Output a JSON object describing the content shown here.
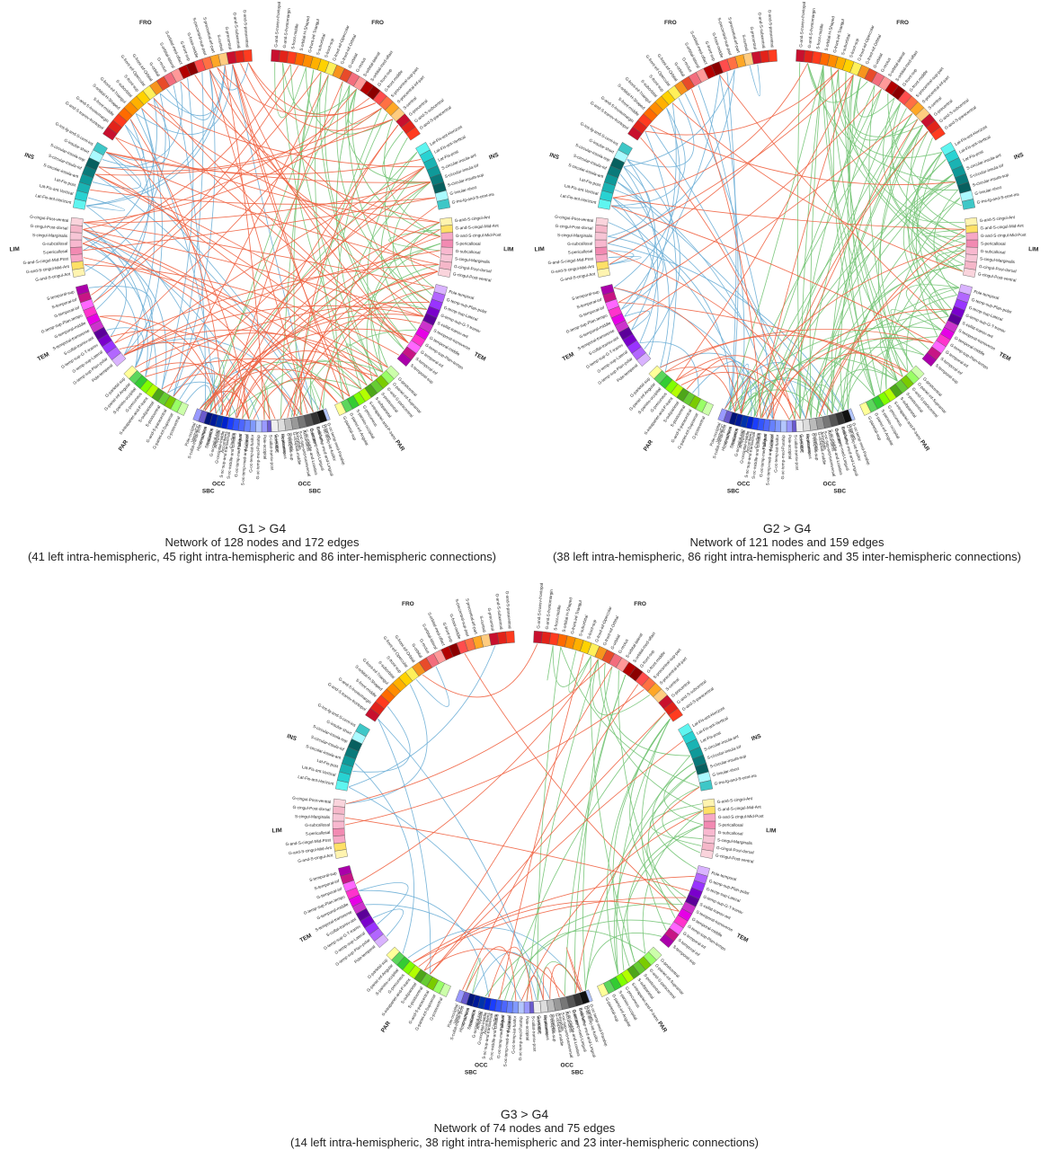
{
  "panels": [
    {
      "id": "g1",
      "title": "G1 > G4",
      "line1": "Network of 128 nodes and 172 edges",
      "line2": "(41 left intra-hemispheric, 45 right intra-hemispheric and 86 inter-hemispheric connections)",
      "lobes": {
        "FRO_L": "FRO",
        "FRO_R": "FRO",
        "INS_L": "INS",
        "INS_R": "INS",
        "LIM_L": "LIM",
        "LIM_R": "LIM",
        "TEM_L": "TEM",
        "TEM_R": "TEM",
        "PAR_L": "PAR",
        "PAR_R": "PAR",
        "OCC_L": "OCC",
        "OCC_R": "OCC",
        "SBC_L": "SBC",
        "SBC_R": "SBC"
      }
    },
    {
      "id": "g2",
      "title": "G2 > G4",
      "line1": "Network of 121 nodes and 159 edges",
      "line2": "(38 left intra-hemispheric, 86 right intra-hemispheric and 35 inter-hemispheric connections)",
      "lobes": {
        "FRO_L": "FRO",
        "FRO_R": "FRO",
        "INS_L": "INS",
        "INS_R": "INS",
        "LIM_L": "LIM",
        "LIM_R": "LIM",
        "TEM_L": "TEM",
        "TEM_R": "TEM",
        "PAR_L": "PAR",
        "PAR_R": "PAR",
        "OCC_L": "OCC",
        "OCC_R": "OCC",
        "SBC_L": "SBC",
        "SBC_R": "SBC"
      }
    },
    {
      "id": "g3",
      "title": "G3 > G4",
      "line1": "Network of 74 nodes and 75 edges",
      "line2": "(14 left intra-hemispheric, 38 right intra-hemispheric and 23 inter-hemispheric connections)",
      "lobes": {
        "FRO_L": "FRO",
        "FRO_R": "FRO",
        "INS_L": "INS",
        "INS_R": "INS",
        "LIM_L": "LIM",
        "LIM_R": "LIM",
        "TEM_L": "TEM",
        "TEM_R": "TEM",
        "PAR_L": "PAR",
        "PAR_R": "PAR",
        "OCC_L": "OCC",
        "OCC_R": "OCC",
        "SBC_L": "SBC",
        "SBC_R": "SBC"
      }
    }
  ],
  "region_labels": {
    "FRO": [
      "G-and-S-transv-frontopol",
      "G-and-S-frontomargin",
      "S-front-middle",
      "S-orbital-H-Shaped",
      "G-front-inf-Triangul",
      "S-suborbital",
      "S-front-sup",
      "G-front-inf-Opercular",
      "G-front-inf-Orbital",
      "G-orbital",
      "G-rectus",
      "S-orbital-lateral",
      "S-orbital-med-olfact",
      "G-front-sup",
      "G-front-middle",
      "S-precentral-sup-part",
      "S-precentral-inf-part",
      "S-central",
      "G-precentral",
      "G-and-S-subcentral",
      "G-and-S-paracentral"
    ],
    "INS": [
      "Lat-Fis-ant-Horizont",
      "Lat-Fis-ant-Vertical",
      "Lat-Fis-post",
      "S-circular-insula-ant",
      "S-circular-insula-inf",
      "S-circular-insula-sup",
      "G-insular-short",
      "G-Ins-lg-and-S-cent-ins"
    ],
    "LIM": [
      "G-and-S-cingul-Ant",
      "G-and-S-cingul-Mid-Ant",
      "G-and-S-cingul-Mid-Post",
      "S-pericallosal",
      "G-subcallosal",
      "S-cingul-Marginalis",
      "G-cingul-Post-dorsal",
      "G-cingul-Post-ventral"
    ],
    "TEM": [
      "Pole-temporal",
      "G-temp-sup-Plan-polar",
      "G-temp-sup-Lateral",
      "G-temp-sup-G-T-transv",
      "S-collat-transv-ant",
      "S-temporal-transverse",
      "G-temporal-middle",
      "G-temp-sup-Plan-tempo",
      "G-temporal-inf",
      "S-temporal-inf",
      "S-temporal-sup"
    ],
    "PAR": [
      "G-postcentral",
      "G-pariet-inf-Supramar",
      "G-and-S-paracentral",
      "S-postcentral",
      "S-subparietal",
      "S-intrapariet-and-P-trans",
      "G-precuneus",
      "S-parieto-occipital",
      "G-pariet-inf-Angular",
      "G-parietal-sup"
    ],
    "OCC": [
      "G-oc-temp-med-Parahip",
      "G-oc-temp-lat-fusifor",
      "S-oc-temp-med-and-Lingual",
      "G-oc-temp-med-Lingual",
      "S-oc-middle-and-Lunatus",
      "S-oc-sup-and-transversal",
      "G-occipital-middle",
      "G-occipital-sup",
      "S-calcarine",
      "G-cuneus",
      "S-collat-transv-post",
      "Pole-occipital"
    ],
    "SBC": [
      "Putamen",
      "Pallidum",
      "Caudate",
      "Accumbens",
      "Amygdala",
      "Thalamus",
      "Hippocampus",
      "VentralDC"
    ]
  },
  "lobe_colors": {
    "FRO": [
      "#c8102e",
      "#e2231a",
      "#ff3b1f",
      "#ff6a00",
      "#ff8c00",
      "#ffb000",
      "#ffd200",
      "#fff05a",
      "#f7941d",
      "#e84b2a",
      "#f26d7d",
      "#ff9999",
      "#b30000",
      "#8b0000",
      "#ff4d4d",
      "#ff7043",
      "#ffa726",
      "#ffcc80"
    ],
    "INS": [
      "#5ff5f0",
      "#28d2d2",
      "#1ab3b3",
      "#0f9999",
      "#0a7a7a",
      "#07605f",
      "#aafaff",
      "#3ec7c7"
    ],
    "LIM": [
      "#fff4b0",
      "#ffe066",
      "#f7a8c6",
      "#f28ab2",
      "#f8b8cf",
      "#f7c6d6",
      "#f5b7c9",
      "#fad4dc"
    ],
    "TEM": [
      "#d9b3ff",
      "#b266ff",
      "#9933ff",
      "#7a00cc",
      "#5c0099",
      "#cc33cc",
      "#e600e6",
      "#ff33cc",
      "#ff66ff",
      "#c71585",
      "#aa00aa"
    ],
    "PAR": [
      "#ccffaa",
      "#99ff66",
      "#7acc00",
      "#66cc33",
      "#4da619",
      "#b3ff00",
      "#80ff00",
      "#33cc33",
      "#5cd65c",
      "#ffff99"
    ],
    "OCC": [
      "#b3c6ff",
      "#8099ff",
      "#6680ff",
      "#4d66ff",
      "#3355ff",
      "#1a3dff",
      "#0022cc",
      "#0033aa",
      "#001a99",
      "#00147a",
      "#6a5acd",
      "#9999ff"
    ],
    "SBC": [
      "#111111",
      "#333333",
      "#555555",
      "#777777",
      "#999999",
      "#bbbbbb",
      "#dddddd",
      "#eeeeee"
    ]
  },
  "edge_colors": {
    "left_intra": "#6baed6",
    "right_intra": "#74c476",
    "inter": "#f0603f"
  },
  "edges": {
    "g1": {
      "left_intra": 41,
      "right_intra": 45,
      "inter": 86
    },
    "g2": {
      "left_intra": 38,
      "right_intra": 86,
      "inter": 35
    },
    "g3": {
      "left_intra": 14,
      "right_intra": 38,
      "inter": 23
    }
  }
}
